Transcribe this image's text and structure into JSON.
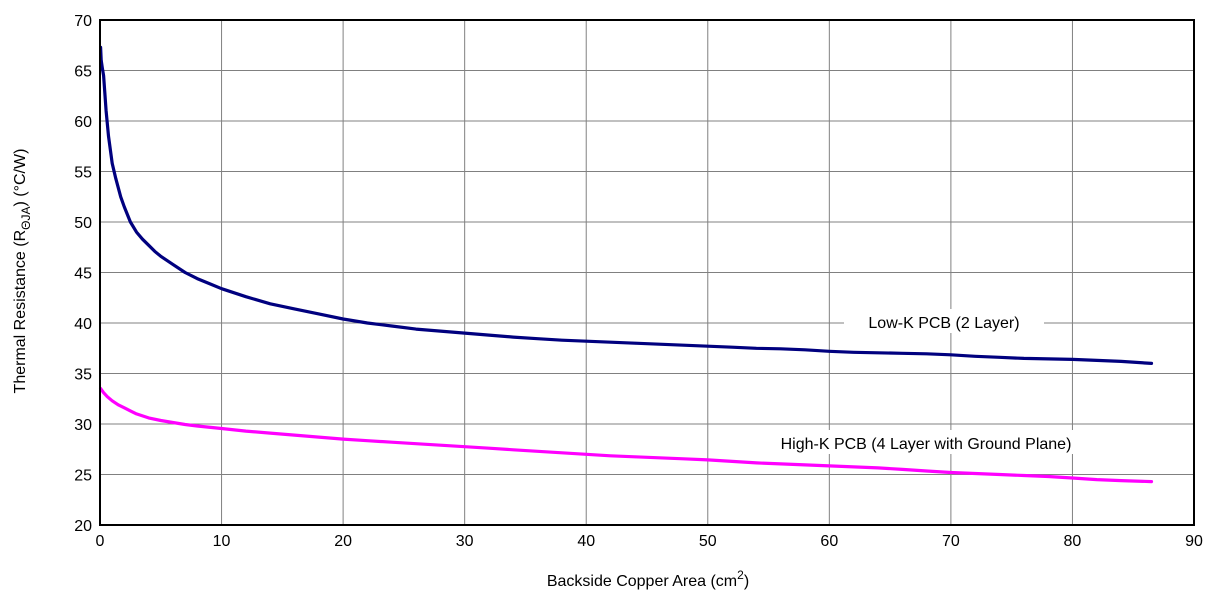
{
  "chart_data": {
    "type": "line",
    "xlabel": "Backside Copper Area (cm",
    "xlabel_sup": "2",
    "xlabel_end": ")",
    "ylabel_pre": "Thermal Resistance (R",
    "ylabel_sub": "ΘJA",
    "ylabel_post": ") (°C/W)",
    "xlim": [
      0,
      90
    ],
    "ylim": [
      20,
      70
    ],
    "xticks": [
      0,
      10,
      20,
      30,
      40,
      50,
      60,
      70,
      80,
      90
    ],
    "yticks": [
      20,
      25,
      30,
      35,
      40,
      45,
      50,
      55,
      60,
      65,
      70
    ],
    "grid": true,
    "series": [
      {
        "name": "Low-K PCB (2 Layer)",
        "color": "#00007f",
        "x": [
          0.05,
          0.1,
          0.2,
          0.3,
          0.5,
          0.7,
          1.0,
          1.3,
          1.7,
          2.0,
          2.5,
          3.0,
          3.5,
          4.0,
          4.5,
          5.0,
          6.0,
          7.0,
          8.0,
          9.0,
          10.0,
          12.0,
          14.0,
          16.0,
          18.0,
          20.0,
          22.0,
          24.0,
          26.0,
          28.0,
          30.0,
          32.0,
          34.0,
          36.0,
          38.0,
          40.0,
          42.0,
          44.0,
          46.0,
          48.0,
          50.0,
          52.0,
          54.0,
          56.0,
          58.0,
          60.0,
          62.0,
          64.0,
          66.0,
          68.0,
          70.0,
          72.0,
          74.0,
          76.0,
          78.0,
          80.0,
          82.0,
          84.0,
          86.5
        ],
        "y": [
          67.3,
          66.0,
          65.2,
          64.5,
          61.0,
          58.5,
          55.8,
          54.3,
          52.5,
          51.5,
          50.0,
          49.0,
          48.3,
          47.7,
          47.1,
          46.6,
          45.8,
          45.0,
          44.4,
          43.9,
          43.4,
          42.6,
          41.9,
          41.4,
          40.9,
          40.4,
          40.0,
          39.7,
          39.4,
          39.2,
          39.0,
          38.8,
          38.6,
          38.45,
          38.3,
          38.2,
          38.1,
          38.0,
          37.9,
          37.8,
          37.7,
          37.6,
          37.5,
          37.45,
          37.35,
          37.2,
          37.1,
          37.05,
          37.0,
          36.95,
          36.85,
          36.7,
          36.6,
          36.5,
          36.45,
          36.4,
          36.3,
          36.2,
          36.0
        ]
      },
      {
        "name": "High-K PCB (4 Layer with Ground Plane)",
        "color": "#ff00ff",
        "x": [
          0.05,
          0.3,
          0.6,
          1.0,
          1.5,
          2.0,
          2.5,
          3.0,
          4.0,
          5.0,
          6.0,
          7.0,
          8.0,
          10.0,
          12.0,
          14.0,
          16.0,
          18.0,
          20.0,
          22.0,
          24.0,
          26.0,
          28.0,
          30.0,
          32.0,
          34.0,
          36.0,
          38.0,
          40.0,
          42.0,
          44.0,
          46.0,
          48.0,
          50.0,
          52.0,
          54.0,
          56.0,
          58.0,
          60.0,
          62.0,
          64.0,
          66.0,
          68.0,
          70.0,
          72.0,
          74.0,
          76.0,
          78.0,
          80.0,
          82.0,
          84.0,
          86.5
        ],
        "y": [
          33.5,
          33.1,
          32.7,
          32.3,
          31.9,
          31.6,
          31.3,
          31.0,
          30.6,
          30.35,
          30.15,
          29.95,
          29.8,
          29.55,
          29.3,
          29.1,
          28.9,
          28.7,
          28.5,
          28.35,
          28.2,
          28.05,
          27.9,
          27.75,
          27.6,
          27.45,
          27.3,
          27.15,
          27.0,
          26.85,
          26.75,
          26.65,
          26.55,
          26.45,
          26.3,
          26.15,
          26.05,
          25.95,
          25.85,
          25.75,
          25.65,
          25.5,
          25.35,
          25.2,
          25.1,
          25.0,
          24.9,
          24.8,
          24.65,
          24.5,
          24.4,
          24.3
        ]
      }
    ]
  }
}
